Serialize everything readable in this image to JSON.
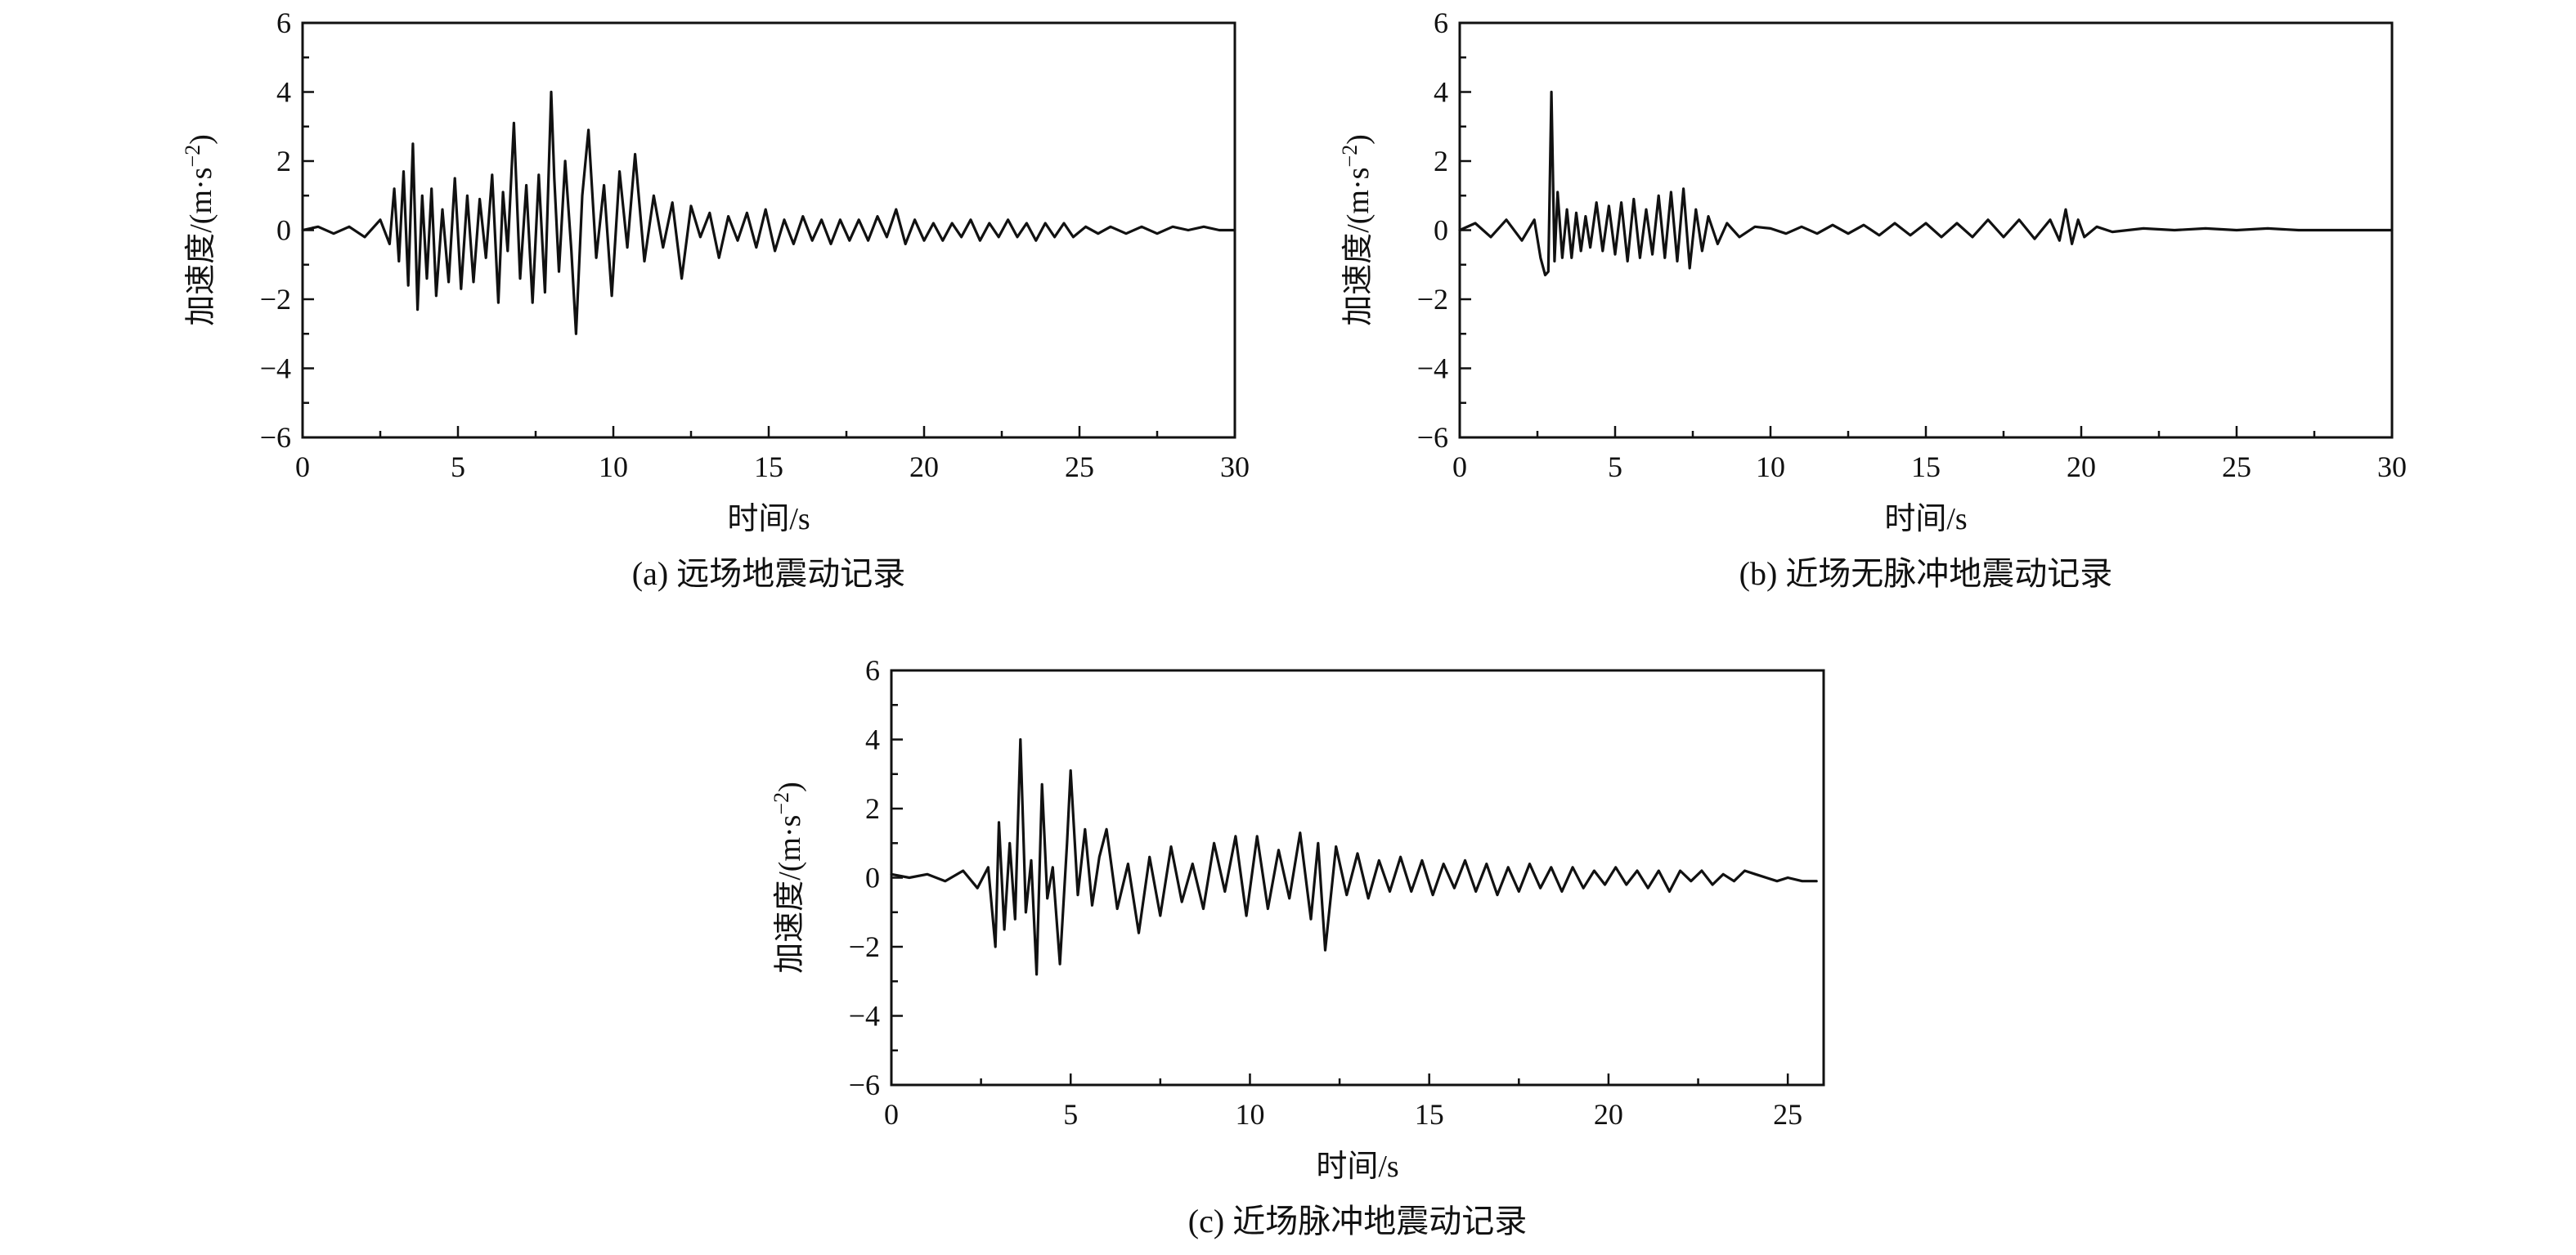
{
  "chart_data": [
    {
      "type": "line",
      "panel": "a",
      "caption": "(a) 远场地震动记录",
      "xlabel": "时间/s",
      "ylabel": "加速度/(m·s−2)",
      "ylabel_base": "加速度/(m·s",
      "ylabel_sup": "−2",
      "ylabel_tail": ")",
      "xlim": [
        0,
        30
      ],
      "ylim": [
        -6,
        6
      ],
      "xticks": [
        0,
        5,
        10,
        15,
        20,
        25,
        30
      ],
      "yticks": [
        -6,
        -4,
        -2,
        0,
        2,
        4,
        6
      ],
      "xtick_labels": [
        "0",
        "5",
        "10",
        "15",
        "20",
        "25",
        "30"
      ],
      "ytick_labels": [
        "−6",
        "−4",
        "−2",
        "0",
        "2",
        "4",
        "6"
      ],
      "grid": false,
      "series": [
        {
          "color": "#111111",
          "x": [
            0,
            0.5,
            1.0,
            1.5,
            2.0,
            2.5,
            2.8,
            2.95,
            3.1,
            3.25,
            3.4,
            3.55,
            3.7,
            3.85,
            4.0,
            4.15,
            4.3,
            4.5,
            4.7,
            4.9,
            5.1,
            5.3,
            5.5,
            5.7,
            5.9,
            6.1,
            6.3,
            6.45,
            6.6,
            6.8,
            7.0,
            7.2,
            7.4,
            7.6,
            7.8,
            8.0,
            8.1,
            8.25,
            8.45,
            8.65,
            8.8,
            9.0,
            9.2,
            9.45,
            9.7,
            9.95,
            10.2,
            10.45,
            10.7,
            11.0,
            11.3,
            11.6,
            11.9,
            12.2,
            12.5,
            12.8,
            13.1,
            13.4,
            13.7,
            14.0,
            14.3,
            14.6,
            14.9,
            15.2,
            15.5,
            15.8,
            16.1,
            16.4,
            16.7,
            17.0,
            17.3,
            17.6,
            17.9,
            18.2,
            18.5,
            18.8,
            19.1,
            19.4,
            19.7,
            20.0,
            20.3,
            20.6,
            20.9,
            21.2,
            21.5,
            21.8,
            22.1,
            22.4,
            22.7,
            23.0,
            23.3,
            23.6,
            23.9,
            24.2,
            24.5,
            24.8,
            25.2,
            25.6,
            26.0,
            26.5,
            27.0,
            27.5,
            28.0,
            28.5,
            29.0,
            29.5,
            30.0
          ],
          "y": [
            0,
            0.1,
            -0.1,
            0.1,
            -0.2,
            0.3,
            -0.4,
            1.2,
            -0.9,
            1.7,
            -1.6,
            2.5,
            -2.3,
            1.0,
            -1.4,
            1.2,
            -1.9,
            0.6,
            -1.5,
            1.5,
            -1.7,
            1.0,
            -1.5,
            0.9,
            -0.8,
            1.6,
            -2.1,
            1.1,
            -0.6,
            3.1,
            -1.4,
            1.3,
            -2.1,
            1.6,
            -1.8,
            4.0,
            1.5,
            -1.2,
            2.0,
            -0.6,
            -3.0,
            1.0,
            2.9,
            -0.8,
            1.3,
            -1.9,
            1.7,
            -0.5,
            2.2,
            -0.9,
            1.0,
            -0.5,
            0.8,
            -1.4,
            0.7,
            -0.2,
            0.5,
            -0.8,
            0.4,
            -0.3,
            0.5,
            -0.5,
            0.6,
            -0.6,
            0.3,
            -0.4,
            0.4,
            -0.3,
            0.3,
            -0.4,
            0.3,
            -0.3,
            0.3,
            -0.3,
            0.4,
            -0.2,
            0.6,
            -0.4,
            0.3,
            -0.3,
            0.2,
            -0.3,
            0.2,
            -0.2,
            0.3,
            -0.3,
            0.2,
            -0.2,
            0.3,
            -0.2,
            0.2,
            -0.3,
            0.2,
            -0.2,
            0.2,
            -0.2,
            0.1,
            -0.1,
            0.1,
            -0.1,
            0.1,
            -0.1,
            0.1,
            0.0,
            0.1,
            0.0,
            0.0
          ]
        }
      ]
    },
    {
      "type": "line",
      "panel": "b",
      "caption": "(b) 近场无脉冲地震动记录",
      "xlabel": "时间/s",
      "ylabel": "加速度/(m·s−2)",
      "ylabel_base": "加速度/(m·s",
      "ylabel_sup": "−2",
      "ylabel_tail": ")",
      "xlim": [
        0,
        30
      ],
      "ylim": [
        -6,
        6
      ],
      "xticks": [
        0,
        5,
        10,
        15,
        20,
        25,
        30
      ],
      "yticks": [
        -6,
        -4,
        -2,
        0,
        2,
        4,
        6
      ],
      "xtick_labels": [
        "0",
        "5",
        "10",
        "15",
        "20",
        "25",
        "30"
      ],
      "ytick_labels": [
        "−6",
        "−4",
        "−2",
        "0",
        "2",
        "4",
        "6"
      ],
      "grid": false,
      "series": [
        {
          "color": "#111111",
          "x": [
            0,
            0.5,
            1.0,
            1.5,
            2.0,
            2.4,
            2.6,
            2.75,
            2.85,
            2.95,
            3.05,
            3.15,
            3.3,
            3.45,
            3.6,
            3.75,
            3.9,
            4.05,
            4.2,
            4.4,
            4.6,
            4.8,
            5.0,
            5.2,
            5.4,
            5.6,
            5.8,
            6.0,
            6.2,
            6.4,
            6.6,
            6.8,
            7.0,
            7.2,
            7.4,
            7.6,
            7.8,
            8.0,
            8.3,
            8.6,
            9.0,
            9.5,
            10.0,
            10.5,
            11.0,
            11.5,
            12.0,
            12.5,
            13.0,
            13.5,
            14.0,
            14.5,
            15.0,
            15.5,
            16.0,
            16.5,
            17.0,
            17.5,
            18.0,
            18.5,
            19.0,
            19.3,
            19.5,
            19.7,
            19.9,
            20.1,
            20.5,
            21.0,
            22.0,
            23.0,
            24.0,
            25.0,
            26.0,
            27.0,
            28.0,
            29.0,
            30.0
          ],
          "y": [
            0,
            0.2,
            -0.2,
            0.3,
            -0.3,
            0.3,
            -0.8,
            -1.3,
            -1.2,
            4.0,
            -0.9,
            1.1,
            -0.8,
            0.6,
            -0.8,
            0.5,
            -0.6,
            0.4,
            -0.5,
            0.8,
            -0.6,
            0.7,
            -0.7,
            0.8,
            -0.9,
            0.9,
            -0.8,
            0.6,
            -0.7,
            1.0,
            -0.8,
            1.1,
            -0.9,
            1.2,
            -1.1,
            0.6,
            -0.6,
            0.4,
            -0.4,
            0.2,
            -0.2,
            0.1,
            0.05,
            -0.1,
            0.1,
            -0.1,
            0.15,
            -0.1,
            0.15,
            -0.15,
            0.2,
            -0.15,
            0.2,
            -0.2,
            0.2,
            -0.2,
            0.3,
            -0.2,
            0.3,
            -0.25,
            0.3,
            -0.3,
            0.6,
            -0.4,
            0.3,
            -0.2,
            0.1,
            -0.05,
            0.05,
            0.0,
            0.05,
            0.0,
            0.05,
            0.0,
            0.0,
            0.0,
            0.0
          ]
        }
      ]
    },
    {
      "type": "line",
      "panel": "c",
      "caption": "(c) 近场脉冲地震动记录",
      "xlabel": "时间/s",
      "ylabel": "加速度/(m·s−2)",
      "ylabel_base": "加速度/(m·s",
      "ylabel_sup": "−2",
      "ylabel_tail": ")",
      "xlim": [
        0,
        26
      ],
      "ylim": [
        -6,
        6
      ],
      "xticks": [
        0,
        5,
        10,
        15,
        20,
        25
      ],
      "yticks": [
        -6,
        -4,
        -2,
        0,
        2,
        4,
        6
      ],
      "xtick_labels": [
        "0",
        "5",
        "10",
        "15",
        "20",
        "25"
      ],
      "ytick_labels": [
        "−6",
        "−4",
        "−2",
        "0",
        "2",
        "4",
        "6"
      ],
      "grid": false,
      "series": [
        {
          "color": "#111111",
          "x": [
            0,
            0.5,
            1.0,
            1.5,
            2.0,
            2.4,
            2.7,
            2.9,
            3.0,
            3.15,
            3.3,
            3.45,
            3.6,
            3.75,
            3.9,
            4.05,
            4.2,
            4.35,
            4.5,
            4.7,
            4.9,
            5.0,
            5.2,
            5.4,
            5.6,
            5.8,
            6.0,
            6.3,
            6.6,
            6.9,
            7.2,
            7.5,
            7.8,
            8.1,
            8.4,
            8.7,
            9.0,
            9.3,
            9.6,
            9.9,
            10.2,
            10.5,
            10.8,
            11.1,
            11.4,
            11.7,
            11.9,
            12.1,
            12.4,
            12.7,
            13.0,
            13.3,
            13.6,
            13.9,
            14.2,
            14.5,
            14.8,
            15.1,
            15.4,
            15.7,
            16.0,
            16.3,
            16.6,
            16.9,
            17.2,
            17.5,
            17.8,
            18.1,
            18.4,
            18.7,
            19.0,
            19.3,
            19.6,
            19.9,
            20.2,
            20.5,
            20.8,
            21.1,
            21.4,
            21.7,
            22.0,
            22.3,
            22.6,
            22.9,
            23.2,
            23.5,
            23.8,
            24.1,
            24.4,
            24.7,
            25.0,
            25.4,
            25.8
          ],
          "y": [
            0.1,
            0.0,
            0.1,
            -0.1,
            0.2,
            -0.3,
            0.3,
            -2.0,
            1.6,
            -1.5,
            1.0,
            -1.2,
            4.0,
            -1.0,
            0.5,
            -2.8,
            2.7,
            -0.6,
            0.3,
            -2.5,
            1.0,
            3.1,
            -0.5,
            1.4,
            -0.8,
            0.6,
            1.4,
            -0.9,
            0.4,
            -1.6,
            0.6,
            -1.1,
            0.9,
            -0.7,
            0.4,
            -0.9,
            1.0,
            -0.4,
            1.2,
            -1.1,
            1.2,
            -0.9,
            0.8,
            -0.6,
            1.3,
            -1.2,
            1.0,
            -2.1,
            0.9,
            -0.5,
            0.7,
            -0.6,
            0.5,
            -0.4,
            0.6,
            -0.4,
            0.5,
            -0.5,
            0.4,
            -0.3,
            0.5,
            -0.4,
            0.4,
            -0.5,
            0.3,
            -0.4,
            0.4,
            -0.3,
            0.3,
            -0.4,
            0.3,
            -0.3,
            0.2,
            -0.2,
            0.3,
            -0.2,
            0.2,
            -0.3,
            0.2,
            -0.4,
            0.2,
            -0.1,
            0.2,
            -0.2,
            0.1,
            -0.1,
            0.2,
            0.1,
            0.0,
            -0.1,
            0.0,
            -0.1,
            -0.1
          ]
        }
      ]
    }
  ]
}
